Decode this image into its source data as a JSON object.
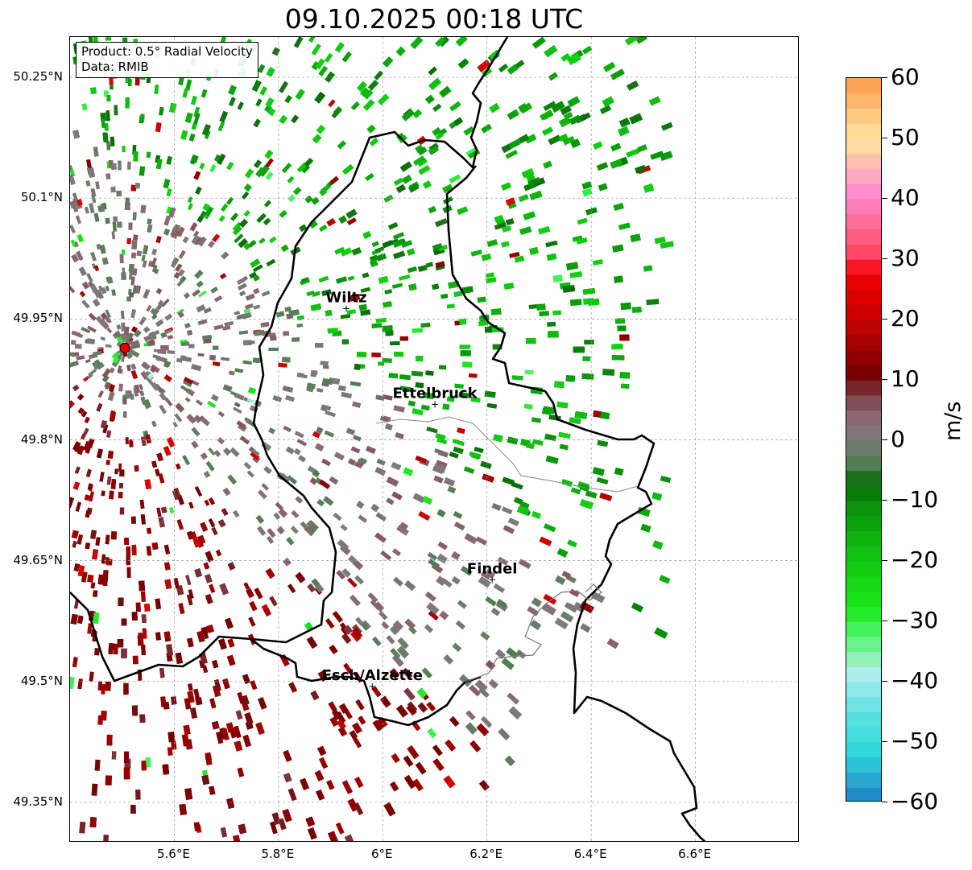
{
  "title": "09.10.2025 00:18 UTC",
  "info_box": {
    "product": "Product: 0.5° Radial Velocity",
    "data_source": "Data: RMIB"
  },
  "map": {
    "extent": {
      "lon_min": 5.4,
      "lon_max": 6.8,
      "lat_min": 49.3,
      "lat_max": 50.3
    },
    "radar_site": {
      "lon": 5.505,
      "lat": 49.914
    },
    "cities": [
      {
        "name": "Wiltz",
        "lon": 5.93,
        "lat": 49.965
      },
      {
        "name": "Ettelbruck",
        "lon": 6.1,
        "lat": 49.846
      },
      {
        "name": "Findel",
        "lon": 6.21,
        "lat": 49.628
      },
      {
        "name": "Esch/Alzette",
        "lon": 5.98,
        "lat": 49.496
      }
    ],
    "lat_ticks": [
      "50.25°N",
      "50.1°N",
      "49.95°N",
      "49.8°N",
      "49.65°N",
      "49.5°N",
      "49.35°N"
    ],
    "lat_values": [
      50.25,
      50.1,
      49.95,
      49.8,
      49.65,
      49.5,
      49.35
    ],
    "lon_ticks": [
      "5.6°E",
      "5.8°E",
      "6°E",
      "6.2°E",
      "6.4°E",
      "6.6°E"
    ],
    "lon_values": [
      5.6,
      5.8,
      6.0,
      6.2,
      6.4,
      6.6
    ]
  },
  "colorbar": {
    "unit": "m/s",
    "min": -60,
    "max": 60,
    "tick_labels": [
      "60",
      "50",
      "40",
      "30",
      "20",
      "10",
      "0",
      "−10",
      "−20",
      "−30",
      "−40",
      "−50",
      "−60"
    ],
    "tick_values": [
      60,
      50,
      40,
      30,
      20,
      10,
      0,
      -10,
      -20,
      -30,
      -40,
      -50,
      -60
    ],
    "stops": [
      {
        "v": -60,
        "c": "#1f7fc4"
      },
      {
        "v": -56,
        "c": "#2aa9d2"
      },
      {
        "v": -52,
        "c": "#2ad8db"
      },
      {
        "v": -45,
        "c": "#5fe0e0"
      },
      {
        "v": -38,
        "c": "#b5eef0"
      },
      {
        "v": -36,
        "c": "#8ef0b0"
      },
      {
        "v": -32,
        "c": "#4cf46a"
      },
      {
        "v": -28,
        "c": "#1aea1a"
      },
      {
        "v": -20,
        "c": "#12c812"
      },
      {
        "v": -12,
        "c": "#0a9a0a"
      },
      {
        "v": -7,
        "c": "#096b09"
      },
      {
        "v": -4,
        "c": "#4f7d4f"
      },
      {
        "v": 0,
        "c": "#7c7c7c"
      },
      {
        "v": 4,
        "c": "#8a6670"
      },
      {
        "v": 8,
        "c": "#7c3a42"
      },
      {
        "v": 10,
        "c": "#700000"
      },
      {
        "v": 20,
        "c": "#c80000"
      },
      {
        "v": 28,
        "c": "#f30000"
      },
      {
        "v": 30,
        "c": "#ff3d5f"
      },
      {
        "v": 36,
        "c": "#ff6b95"
      },
      {
        "v": 41,
        "c": "#ff8cd0"
      },
      {
        "v": 45,
        "c": "#ffb3b7"
      },
      {
        "v": 50,
        "c": "#ffe59a"
      },
      {
        "v": 55,
        "c": "#ffbf7a"
      },
      {
        "v": 60,
        "c": "#ff9a4a"
      }
    ]
  }
}
